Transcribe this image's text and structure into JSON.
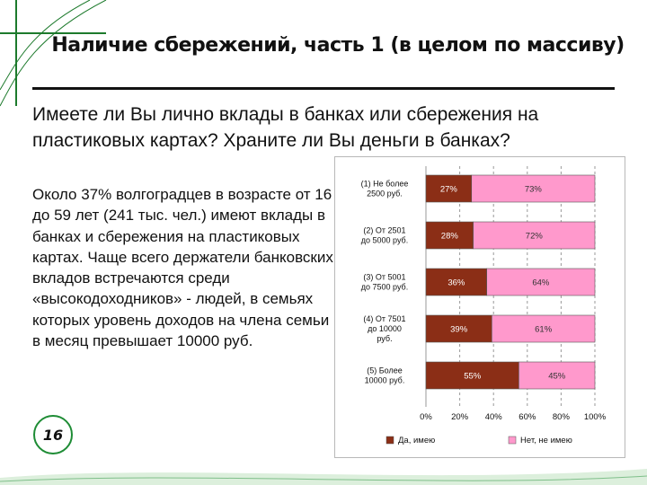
{
  "slide": {
    "title": "Наличие сбережений, часть 1 (в целом по массиву)",
    "question": "Имеете ли Вы лично вклады в банках или сбережения на пластиковых картах? Храните ли Вы деньги в банках?",
    "body": "Около 37% волгоградцев в возрасте от 16 до 59 лет (241 тыс. чел.) имеют вклады в банках и сбережения на пластиковых картах. Чаще всего держатели банковских вкладов встречаются среди «высокодоходников» - людей, в семьях которых уровень доходов на члена семьи в месяц превышает 10000 руб.",
    "page_number": "16",
    "accent_color": "#1e8c35"
  },
  "chart_data": {
    "type": "bar",
    "orientation": "horizontal",
    "stacked": true,
    "categories": [
      [
        "(1) Не более",
        "2500 руб."
      ],
      [
        "(2) От 2501",
        "до 5000 руб."
      ],
      [
        "(3) От 5001",
        "до 7500 руб."
      ],
      [
        "(4) От 7501",
        "до 10000",
        "руб."
      ],
      [
        "(5) Более",
        "10000 руб."
      ]
    ],
    "series": [
      {
        "name": "Да, имею",
        "values": [
          27,
          28,
          36,
          39,
          55
        ],
        "color": "#8b2e16",
        "label_color": "#ffffff"
      },
      {
        "name": "Нет, не имею",
        "values": [
          73,
          72,
          64,
          61,
          45
        ],
        "color": "#ff99cc",
        "label_color": "#333333"
      }
    ],
    "value_format": "{v}%",
    "xlim": [
      0,
      100
    ],
    "x_ticks": [
      "0%",
      "20%",
      "40%",
      "60%",
      "80%",
      "100%"
    ],
    "grid": "vertical dashed",
    "legend_position": "bottom"
  }
}
